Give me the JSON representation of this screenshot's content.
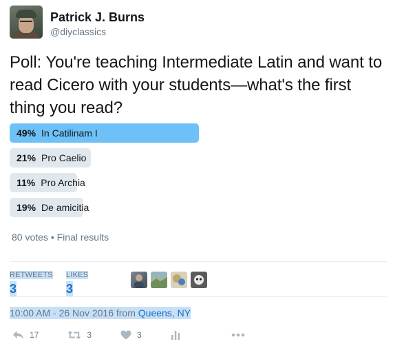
{
  "user": {
    "name": "Patrick J. Burns",
    "handle": "@diyclassics"
  },
  "tweet": {
    "text": "Poll: You're teaching Intermediate Latin and want to read Cicero with your students—what's the first thing you read?"
  },
  "poll": {
    "options": [
      {
        "percent_label": "49%",
        "label": "In Catilinam I",
        "percent": 49,
        "winner": true
      },
      {
        "percent_label": "21%",
        "label": "Pro Caelio",
        "percent": 21,
        "winner": false
      },
      {
        "percent_label": "11%",
        "label": "Pro Archia",
        "percent": 11,
        "winner": false
      },
      {
        "percent_label": "19%",
        "label": "De amicitia",
        "percent": 19,
        "winner": false
      }
    ],
    "votes": "80 votes",
    "separator": "•",
    "status": "Final results"
  },
  "stats": {
    "retweets_label": "RETWEETS",
    "retweets_value": "3",
    "likes_label": "LIKES",
    "likes_value": "3"
  },
  "timestamp": {
    "text": "10:00 AM - 26 Nov 2016 from ",
    "location": "Queens, NY"
  },
  "actions": {
    "reply_count": "17",
    "retweet_count": "3",
    "like_count": "3"
  },
  "colors": {
    "winner_bar": "#6ec1f6",
    "bar": "#e1e8ed",
    "link": "#1b6fc4",
    "muted": "#657786"
  }
}
